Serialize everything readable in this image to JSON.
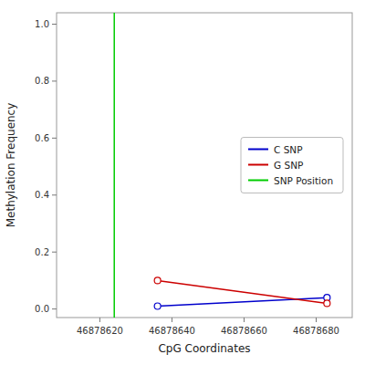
{
  "chart_data": {
    "type": "line",
    "x_label": "CpG Coordinates",
    "y_label": "Methylation Frequency",
    "series": [
      {
        "name": "C SNP",
        "color": "#0000cc",
        "marker": "circle",
        "x": [
          46878636,
          46878683
        ],
        "values": [
          0.01,
          0.04
        ]
      },
      {
        "name": "G SNP",
        "color": "#cc0000",
        "marker": "circle",
        "x": [
          46878636,
          46878683
        ],
        "values": [
          0.1,
          0.02
        ]
      },
      {
        "name": "SNP Position",
        "type": "vline",
        "color": "#00cc00",
        "x": [
          46878624
        ]
      }
    ],
    "xlim": [
      46878608,
      46878690
    ],
    "ylim": [
      -0.03,
      1.04
    ],
    "xticks": [
      46878620,
      46878640,
      46878660,
      46878680
    ],
    "yticks": [
      {
        "value": 0.0,
        "label": "0.0"
      },
      0.2,
      0.4,
      0.6,
      0.8,
      {
        "value": 1.0,
        "label": "1.0"
      }
    ],
    "grid": false,
    "legend": "right"
  }
}
